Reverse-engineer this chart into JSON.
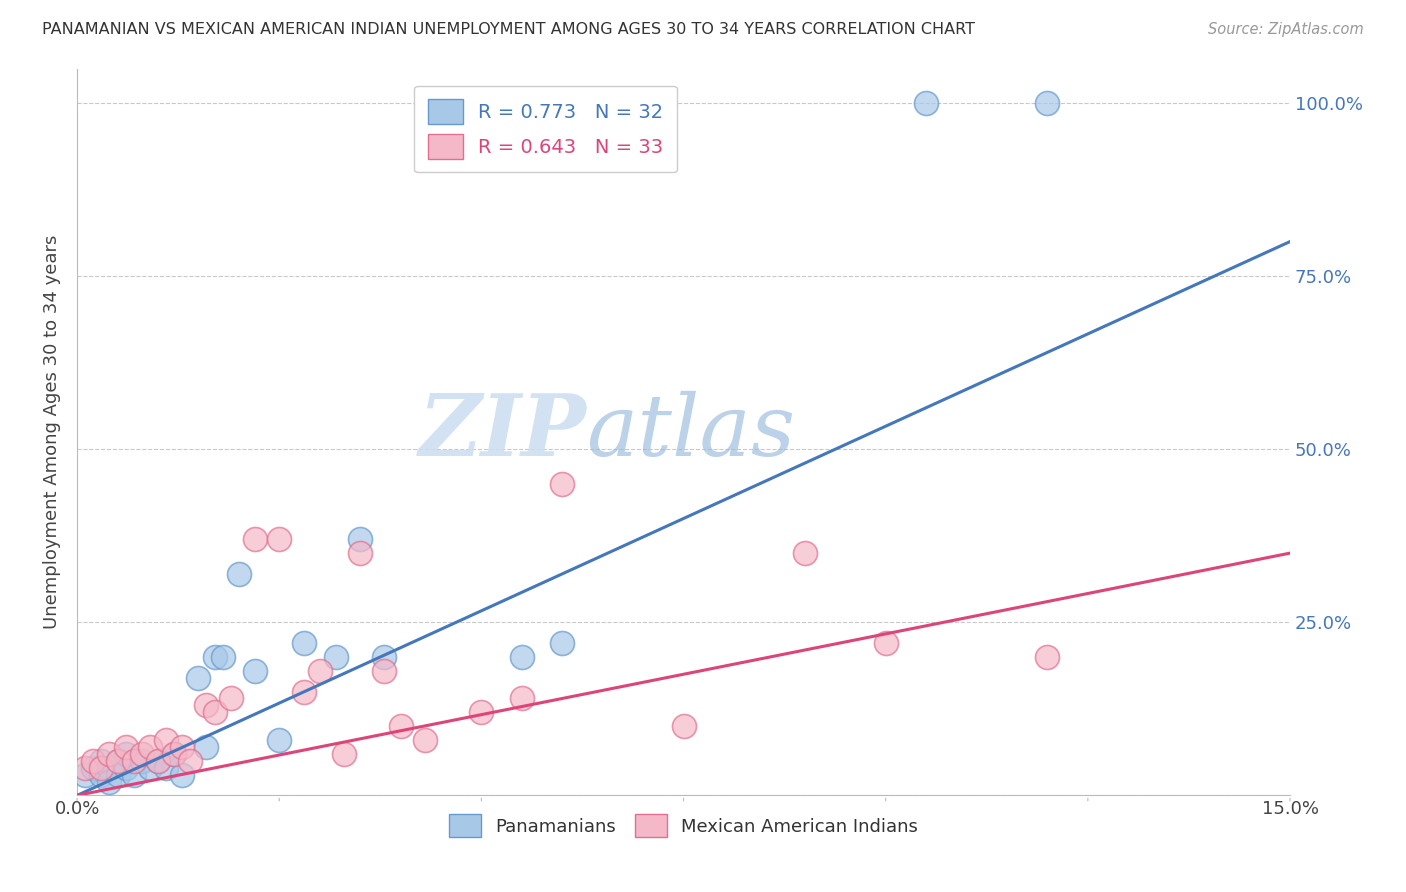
{
  "title": "PANAMANIAN VS MEXICAN AMERICAN INDIAN UNEMPLOYMENT AMONG AGES 30 TO 34 YEARS CORRELATION CHART",
  "source": "Source: ZipAtlas.com",
  "ylabel": "Unemployment Among Ages 30 to 34 years",
  "xlim": [
    0.0,
    0.15
  ],
  "ylim": [
    0.0,
    1.05
  ],
  "xticks": [
    0.0,
    0.025,
    0.05,
    0.075,
    0.1,
    0.125,
    0.15
  ],
  "xticklabels": [
    "0.0%",
    "",
    "",
    "",
    "",
    "",
    "15.0%"
  ],
  "yticks": [
    0.0,
    0.25,
    0.5,
    0.75,
    1.0
  ],
  "ytick_labels_right": [
    "",
    "25.0%",
    "50.0%",
    "75.0%",
    "100.0%"
  ],
  "watermark_zip": "ZIP",
  "watermark_atlas": "atlas",
  "blue_color": "#a8c8e8",
  "blue_edge_color": "#6699cc",
  "pink_color": "#f4b8c8",
  "pink_edge_color": "#e07090",
  "blue_line_color": "#4477bb",
  "pink_line_color": "#dd4477",
  "legend_R_blue": "R = 0.773",
  "legend_N_blue": "N = 32",
  "legend_R_pink": "R = 0.643",
  "legend_N_pink": "N = 33",
  "blue_scatter_x": [
    0.001,
    0.002,
    0.003,
    0.003,
    0.004,
    0.004,
    0.005,
    0.005,
    0.006,
    0.006,
    0.007,
    0.008,
    0.009,
    0.01,
    0.011,
    0.012,
    0.013,
    0.015,
    0.016,
    0.017,
    0.018,
    0.02,
    0.022,
    0.025,
    0.028,
    0.032,
    0.035,
    0.038,
    0.055,
    0.06,
    0.105,
    0.12
  ],
  "blue_scatter_y": [
    0.03,
    0.04,
    0.03,
    0.05,
    0.04,
    0.02,
    0.05,
    0.03,
    0.04,
    0.06,
    0.03,
    0.05,
    0.04,
    0.05,
    0.04,
    0.06,
    0.03,
    0.17,
    0.07,
    0.2,
    0.2,
    0.32,
    0.18,
    0.08,
    0.22,
    0.2,
    0.37,
    0.2,
    0.2,
    0.22,
    1.0,
    1.0
  ],
  "pink_scatter_x": [
    0.001,
    0.002,
    0.003,
    0.004,
    0.005,
    0.006,
    0.007,
    0.008,
    0.009,
    0.01,
    0.011,
    0.012,
    0.013,
    0.014,
    0.016,
    0.017,
    0.019,
    0.022,
    0.025,
    0.028,
    0.03,
    0.033,
    0.035,
    0.038,
    0.04,
    0.043,
    0.05,
    0.055,
    0.06,
    0.075,
    0.09,
    0.1,
    0.12
  ],
  "pink_scatter_y": [
    0.04,
    0.05,
    0.04,
    0.06,
    0.05,
    0.07,
    0.05,
    0.06,
    0.07,
    0.05,
    0.08,
    0.06,
    0.07,
    0.05,
    0.13,
    0.12,
    0.14,
    0.37,
    0.37,
    0.15,
    0.18,
    0.06,
    0.35,
    0.18,
    0.1,
    0.08,
    0.12,
    0.14,
    0.45,
    0.1,
    0.35,
    0.22,
    0.2
  ],
  "blue_line_x": [
    0.0,
    0.15
  ],
  "blue_line_y": [
    0.0,
    0.8
  ],
  "pink_line_x": [
    0.0,
    0.15
  ],
  "pink_line_y": [
    0.0,
    0.35
  ],
  "background_color": "#ffffff",
  "grid_color": "#bbbbbb"
}
